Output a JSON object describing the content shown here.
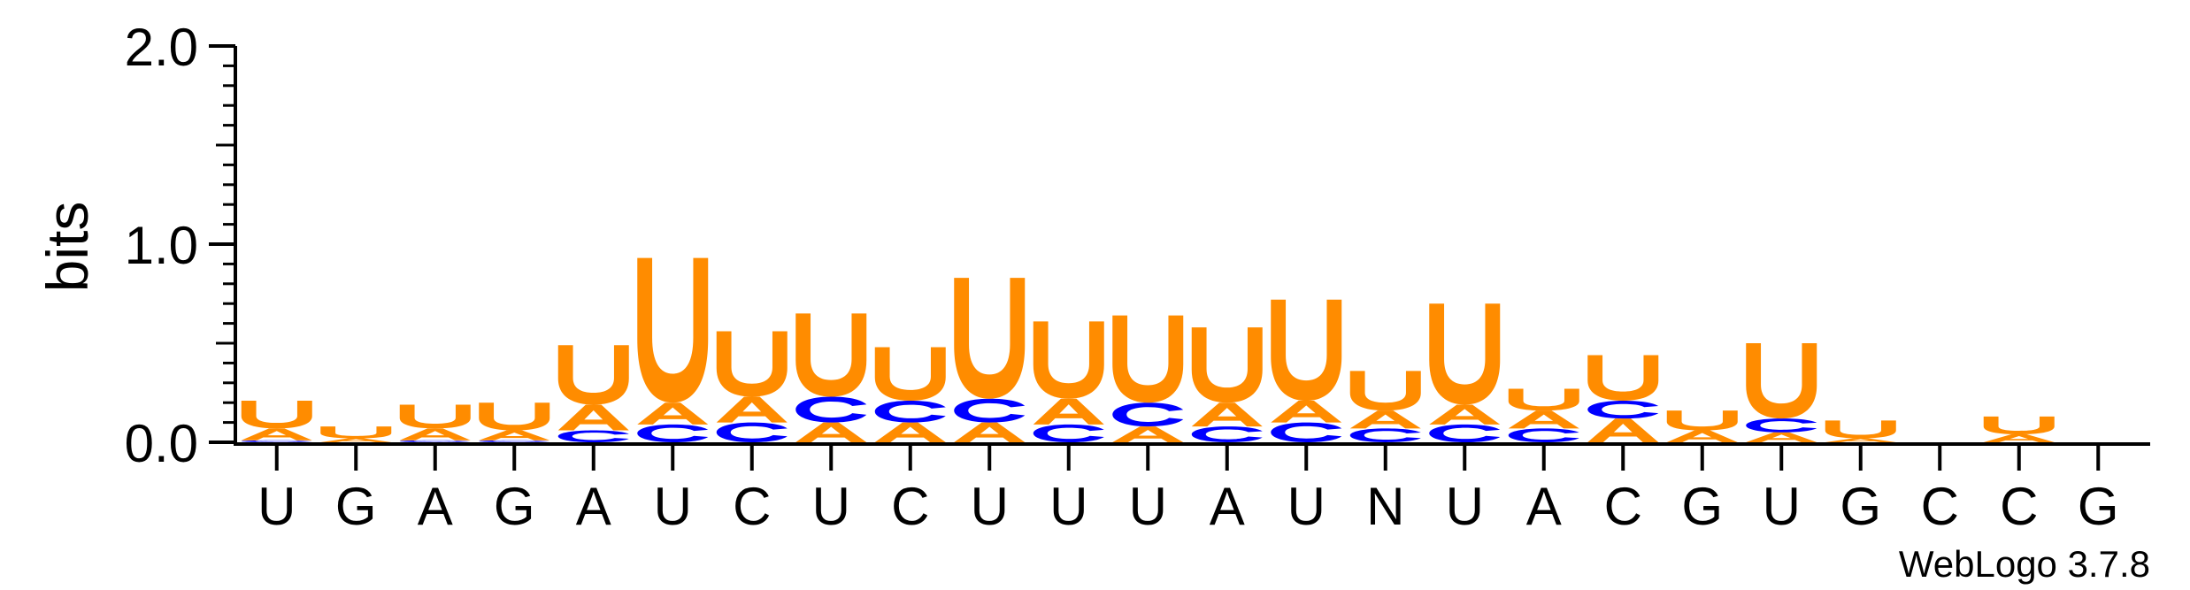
{
  "chart_data": {
    "type": "sequence-logo",
    "ylabel": "bits",
    "ylim": [
      0,
      2.0
    ],
    "yticks": [
      "0.0",
      "1.0",
      "2.0"
    ],
    "positions": [
      "U",
      "G",
      "A",
      "G",
      "A",
      "U",
      "C",
      "U",
      "C",
      "U",
      "U",
      "U",
      "A",
      "U",
      "N",
      "U",
      "A",
      "C",
      "G",
      "U",
      "G",
      "C",
      "C",
      "G"
    ],
    "colors": {
      "U": "#ff8c00",
      "A": "#ff8c00",
      "C": "#0000ff",
      "G": "#ff8c00"
    },
    "stacks": [
      [
        [
          "C",
          0.01
        ],
        [
          "A",
          0.06
        ],
        [
          "U",
          0.14
        ]
      ],
      [
        [
          "A",
          0.02
        ],
        [
          "U",
          0.06
        ]
      ],
      [
        [
          "C",
          0.01
        ],
        [
          "A",
          0.06
        ],
        [
          "U",
          0.12
        ]
      ],
      [
        [
          "C",
          0.01
        ],
        [
          "A",
          0.05
        ],
        [
          "U",
          0.14
        ]
      ],
      [
        [
          "C",
          0.06
        ],
        [
          "A",
          0.13
        ],
        [
          "U",
          0.3
        ]
      ],
      [
        [
          "C",
          0.09
        ],
        [
          "A",
          0.11
        ],
        [
          "U",
          0.73
        ]
      ],
      [
        [
          "C",
          0.1
        ],
        [
          "A",
          0.13
        ],
        [
          "U",
          0.33
        ]
      ],
      [
        [
          "A",
          0.1
        ],
        [
          "C",
          0.13
        ],
        [
          "U",
          0.42
        ]
      ],
      [
        [
          "A",
          0.1
        ],
        [
          "C",
          0.11
        ],
        [
          "U",
          0.27
        ]
      ],
      [
        [
          "A",
          0.1
        ],
        [
          "C",
          0.12
        ],
        [
          "U",
          0.61
        ]
      ],
      [
        [
          "C",
          0.09
        ],
        [
          "A",
          0.13
        ],
        [
          "U",
          0.39
        ]
      ],
      [
        [
          "A",
          0.08
        ],
        [
          "C",
          0.12
        ],
        [
          "U",
          0.44
        ]
      ],
      [
        [
          "C",
          0.08
        ],
        [
          "A",
          0.12
        ],
        [
          "U",
          0.38
        ]
      ],
      [
        [
          "C",
          0.1
        ],
        [
          "A",
          0.11
        ],
        [
          "U",
          0.51
        ]
      ],
      [
        [
          "C",
          0.07
        ],
        [
          "A",
          0.09
        ],
        [
          "U",
          0.2
        ]
      ],
      [
        [
          "C",
          0.09
        ],
        [
          "A",
          0.1
        ],
        [
          "U",
          0.51
        ]
      ],
      [
        [
          "C",
          0.07
        ],
        [
          "A",
          0.09
        ],
        [
          "U",
          0.11
        ]
      ],
      [
        [
          "A",
          0.12
        ],
        [
          "C",
          0.09
        ],
        [
          "U",
          0.23
        ]
      ],
      [
        [
          "A",
          0.06
        ],
        [
          "U",
          0.1
        ]
      ],
      [
        [
          "A",
          0.05
        ],
        [
          "C",
          0.07
        ],
        [
          "U",
          0.38
        ]
      ],
      [
        [
          "A",
          0.02
        ],
        [
          "U",
          0.09
        ]
      ],
      [],
      [
        [
          "A",
          0.04
        ],
        [
          "U",
          0.09
        ]
      ],
      []
    ]
  },
  "footer": {
    "watermark": "WebLogo 3.7.8"
  }
}
